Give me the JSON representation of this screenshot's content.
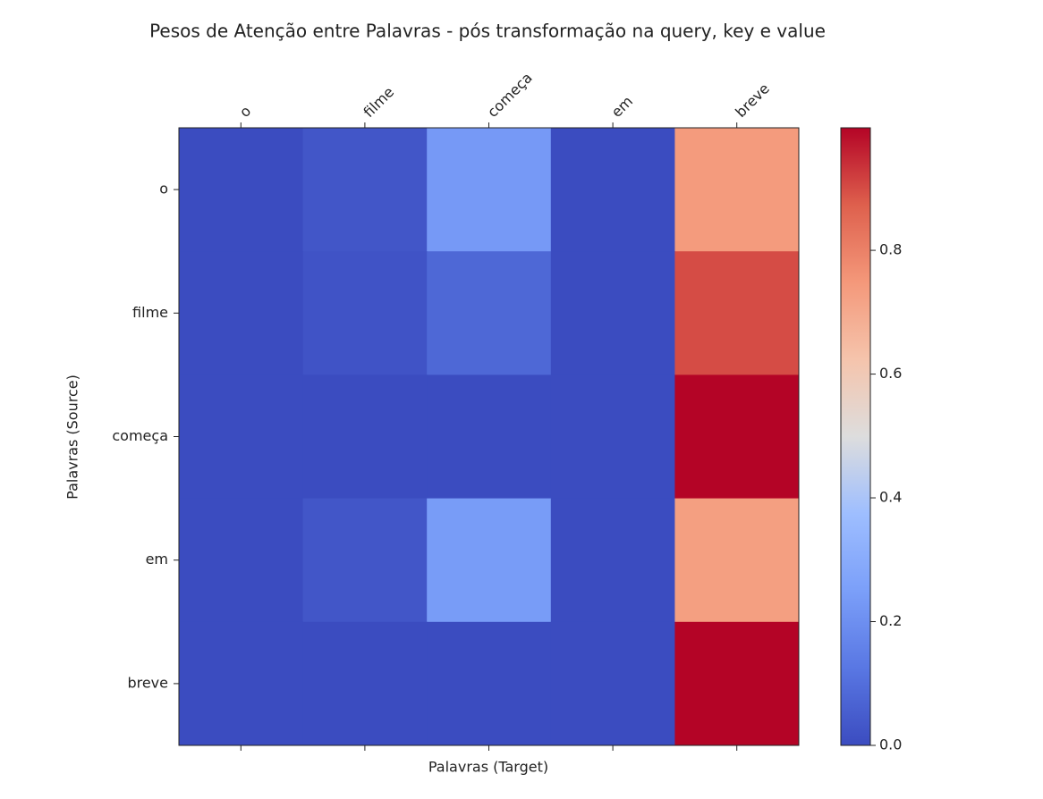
{
  "chart_data": {
    "type": "heatmap",
    "title": "Pesos de Atenção entre Palavras - pós transformação na query, key e value",
    "x_label": "Palavras (Target)",
    "y_label": "Palavras (Source)",
    "x_categories": [
      "o",
      "filme",
      "começa",
      "em",
      "breve"
    ],
    "y_categories": [
      "o",
      "filme",
      "começa",
      "em",
      "breve"
    ],
    "values": [
      [
        0.0,
        0.03,
        0.23,
        0.0,
        0.74
      ],
      [
        0.0,
        0.02,
        0.08,
        0.0,
        0.9
      ],
      [
        0.0,
        0.0,
        0.0,
        0.0,
        0.998
      ],
      [
        0.0,
        0.03,
        0.24,
        0.0,
        0.73
      ],
      [
        0.0,
        0.0,
        0.0,
        0.0,
        0.998
      ]
    ],
    "colormap": "coolwarm",
    "colorbar": {
      "lim": [
        0,
        0.998
      ],
      "ticks": [
        {
          "value": 0,
          "label": "0.0"
        },
        0.2,
        0.4,
        0.6,
        0.8
      ]
    }
  }
}
